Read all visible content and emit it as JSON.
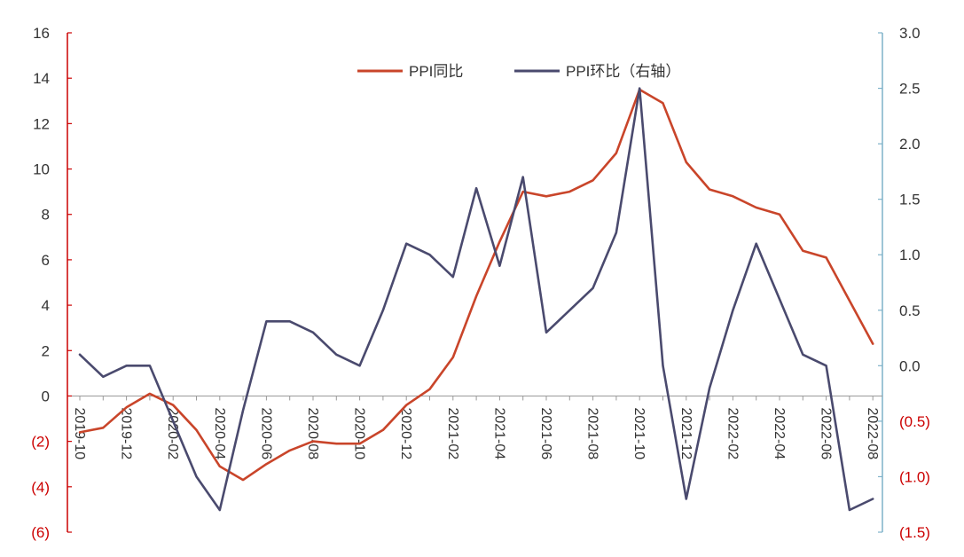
{
  "chart_data": {
    "type": "line",
    "title": "",
    "legend_position": "top-center",
    "grid": false,
    "x_tick_labels": [
      "2019-10",
      "2019-12",
      "2020-02",
      "2020-04",
      "2020-06",
      "2020-08",
      "2020-10",
      "2020-12",
      "2021-02",
      "2021-04",
      "2021-06",
      "2021-08",
      "2021-10",
      "2021-12",
      "2022-02",
      "2022-04",
      "2022-06",
      "2022-08"
    ],
    "x": [
      "2019-10",
      "2019-11",
      "2019-12",
      "2020-01",
      "2020-02",
      "2020-03",
      "2020-04",
      "2020-05",
      "2020-06",
      "2020-07",
      "2020-08",
      "2020-09",
      "2020-10",
      "2020-11",
      "2020-12",
      "2021-01",
      "2021-02",
      "2021-03",
      "2021-04",
      "2021-05",
      "2021-06",
      "2021-07",
      "2021-08",
      "2021-09",
      "2021-10",
      "2021-11",
      "2021-12",
      "2022-01",
      "2022-02",
      "2022-03",
      "2022-04",
      "2022-05",
      "2022-06",
      "2022-07",
      "2022-08"
    ],
    "left_axis": {
      "ylim": [
        -6,
        16
      ],
      "ticks": [
        16,
        14,
        12,
        10,
        8,
        6,
        4,
        2,
        0,
        -2,
        -4,
        -6
      ],
      "tick_labels": [
        "16",
        "14",
        "12",
        "10",
        "8",
        "6",
        "4",
        "2",
        "0",
        "(2)",
        "(4)",
        "(6)"
      ],
      "color": "#cc0000"
    },
    "right_axis": {
      "ylim": [
        -1.5,
        3.0
      ],
      "ticks": [
        3.0,
        2.5,
        2.0,
        1.5,
        1.0,
        0.5,
        0.0,
        -0.5,
        -1.0,
        -1.5
      ],
      "tick_labels": [
        "3.0",
        "2.5",
        "2.0",
        "1.5",
        "1.0",
        "0.5",
        "0.0",
        "(0.5)",
        "(1.0)",
        "(1.5)"
      ],
      "color": "#7fb2c9"
    },
    "series": [
      {
        "name": "PPI同比",
        "axis": "left",
        "color": "#c9452a",
        "values": [
          -1.6,
          -1.4,
          -0.5,
          0.1,
          -0.4,
          -1.5,
          -3.1,
          -3.7,
          -3.0,
          -2.4,
          -2.0,
          -2.1,
          -2.1,
          -1.5,
          -0.4,
          0.3,
          1.7,
          4.4,
          6.8,
          9.0,
          8.8,
          9.0,
          9.5,
          10.7,
          13.5,
          12.9,
          10.3,
          9.1,
          8.8,
          8.3,
          8.0,
          6.4,
          6.1,
          4.2,
          2.3
        ]
      },
      {
        "name": "PPI环比（右轴）",
        "axis": "right",
        "color": "#4a4a6e",
        "values": [
          0.1,
          -0.1,
          0.0,
          0.0,
          -0.5,
          -1.0,
          -1.3,
          -0.4,
          0.4,
          0.4,
          0.3,
          0.1,
          0.0,
          0.5,
          1.1,
          1.0,
          0.8,
          1.6,
          0.9,
          1.7,
          0.3,
          0.5,
          0.7,
          1.2,
          2.5,
          0.0,
          -1.2,
          -0.2,
          0.5,
          1.1,
          0.6,
          0.1,
          0.0,
          -1.3,
          -1.2
        ]
      }
    ]
  }
}
